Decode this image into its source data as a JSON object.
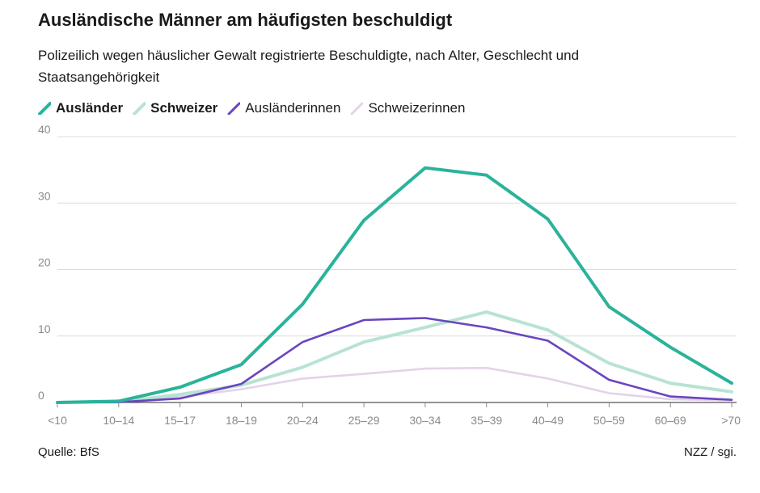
{
  "header": {
    "title": "Ausländische Männer am häufigsten beschuldigt",
    "subtitle": "Polizeilich wegen häuslicher Gewalt registrierte Beschuldigte, nach Alter, Geschlecht und Staatsangehörigkeit"
  },
  "footer": {
    "source": "Quelle: BfS",
    "credit": "NZZ / sgi."
  },
  "chart_data": {
    "type": "line",
    "title": "Ausländische Männer am häufigsten beschuldigt",
    "subtitle": "Polizeilich wegen häuslicher Gewalt registrierte Beschuldigte, nach Alter, Geschlecht und Staatsangehörigkeit",
    "xlabel": "",
    "ylabel": "",
    "ylim": [
      0,
      40
    ],
    "yticks": [
      0,
      10,
      20,
      30,
      40
    ],
    "grid": true,
    "legend_position": "top-left",
    "categories": [
      "<10",
      "10–14",
      "15–17",
      "18–19",
      "20–24",
      "25–29",
      "30–34",
      "35–39",
      "40–49",
      "50–59",
      "60–69",
      ">70"
    ],
    "series": [
      {
        "name": "Ausländer",
        "color": "#2ab39a",
        "bold": true,
        "values": [
          0,
          0.2,
          2.3,
          5.7,
          14.8,
          27.4,
          35.3,
          34.2,
          27.6,
          14.4,
          8.3,
          2.9
        ]
      },
      {
        "name": "Schweizer",
        "color": "#b8e3d2",
        "bold": true,
        "values": [
          0,
          0.1,
          1.2,
          2.6,
          5.3,
          9.1,
          11.3,
          13.6,
          10.9,
          5.9,
          2.9,
          1.6
        ]
      },
      {
        "name": "Ausländerinnen",
        "color": "#6a45c0",
        "bold": false,
        "values": [
          0,
          0.05,
          0.6,
          2.8,
          9.1,
          12.4,
          12.7,
          11.3,
          9.3,
          3.4,
          0.9,
          0.4
        ]
      },
      {
        "name": "Schweizerinnen",
        "color": "#e3d3e8",
        "bold": false,
        "values": [
          0,
          0.03,
          0.8,
          2.0,
          3.6,
          4.3,
          5.1,
          5.2,
          3.6,
          1.4,
          0.5,
          0.3
        ]
      }
    ]
  }
}
